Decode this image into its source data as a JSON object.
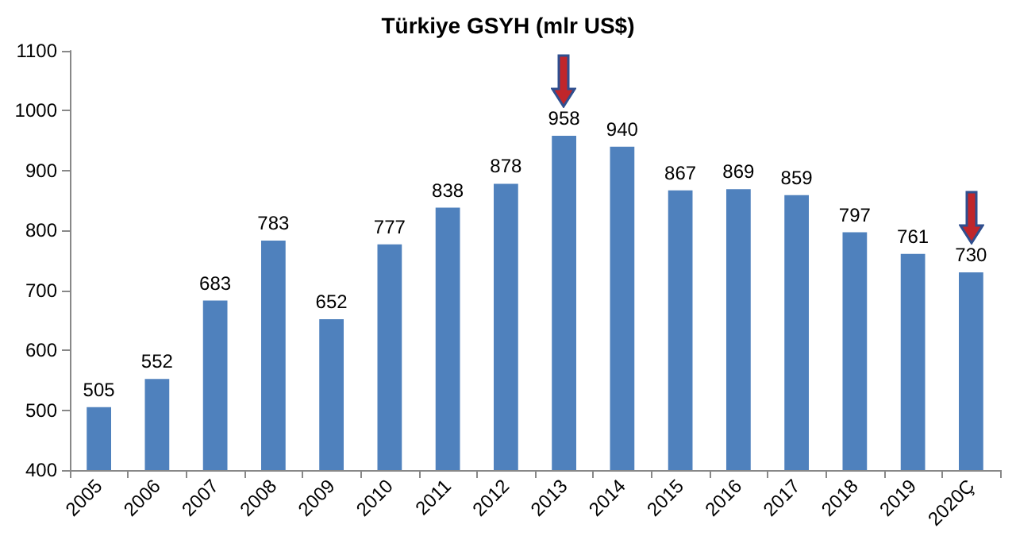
{
  "chart_data": {
    "type": "bar",
    "title": "Türkiye GSYH (mlr US$)",
    "categories": [
      "2005",
      "2006",
      "2007",
      "2008",
      "2009",
      "2010",
      "2011",
      "2012",
      "2013",
      "2014",
      "2015",
      "2016",
      "2017",
      "2018",
      "2019",
      "2020Ç"
    ],
    "values": [
      505,
      552,
      683,
      783,
      652,
      777,
      838,
      878,
      958,
      940,
      867,
      869,
      859,
      797,
      761,
      730
    ],
    "color": "#4f81bd",
    "ylim": [
      400,
      1100
    ],
    "yticks": [
      400,
      500,
      600,
      700,
      800,
      900,
      1000,
      1100
    ],
    "data_labels": true,
    "grid": false
  }
}
